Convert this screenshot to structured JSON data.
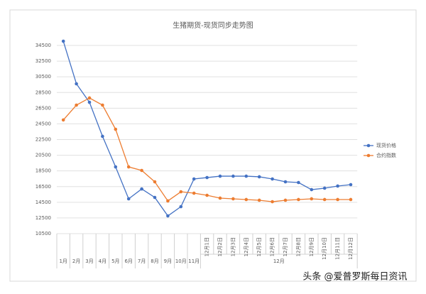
{
  "chart_data": {
    "type": "line",
    "title": "生猪期货-现货同步走势图",
    "categories": [
      "1月",
      "2月",
      "3月",
      "4月",
      "5月",
      "6月",
      "7月",
      "8月",
      "9月",
      "10月",
      "11月",
      "12月1日",
      "12月2日",
      "12月3日",
      "12月4日",
      "12月5日",
      "12月6日",
      "12月7日",
      "12月8日",
      "12月9日",
      "12月10日",
      "12月11日",
      "12月12日"
    ],
    "group_label": "12月",
    "series": [
      {
        "name": "现货价格",
        "color": "#4472c4",
        "values": [
          35040,
          29610,
          27250,
          22910,
          19010,
          14940,
          16200,
          15120,
          12760,
          13940,
          17470,
          17650,
          17830,
          17830,
          17830,
          17750,
          17470,
          17110,
          17020,
          16110,
          16300,
          16570,
          16750
        ]
      },
      {
        "name": "合约指数",
        "color": "#ed7d31",
        "values": [
          25000,
          26890,
          27800,
          26890,
          23810,
          19010,
          18560,
          17110,
          14670,
          15840,
          15660,
          15390,
          15030,
          14940,
          14850,
          14760,
          14570,
          14760,
          14850,
          14940,
          14850,
          14850,
          14850
        ]
      }
    ],
    "ylim": [
      10500,
      36000
    ],
    "yticks": [
      10500,
      12500,
      14500,
      16500,
      18500,
      20500,
      22500,
      24500,
      26500,
      28500,
      30500,
      32500,
      34500
    ],
    "grid": true,
    "legend": "right",
    "watermark": "头条 @爱普罗斯每日资讯"
  }
}
